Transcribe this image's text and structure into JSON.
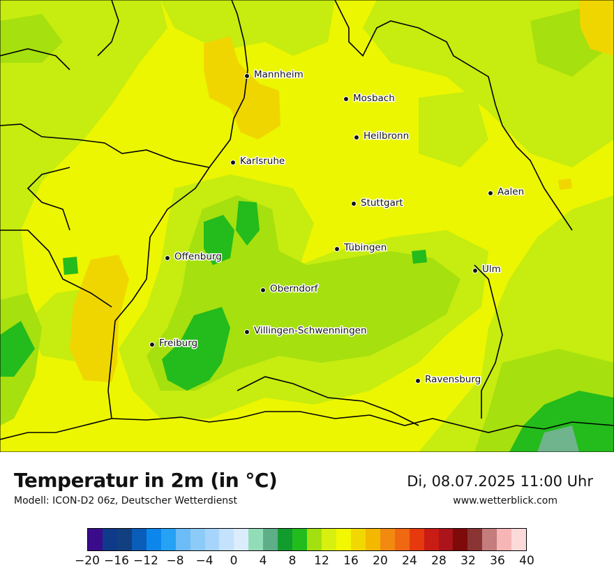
{
  "header": {
    "title": "Temperatur in 2m (in °C)",
    "subtitle": "Modell: ICON-D2 06z, Deutscher Wetterdienst",
    "datetime": "Di, 08.07.2025 11:00 Uhr",
    "website": "www.wetterblick.com"
  },
  "cities": [
    "Mannheim",
    "Mosbach",
    "Heilbronn",
    "Karlsruhe",
    "Aalen",
    "Stuttgart",
    "Tübingen",
    "Offenburg",
    "Ulm",
    "Oberndorf",
    "Villingen-Schwenningen",
    "Freiburg",
    "Ravensburg"
  ],
  "legend": {
    "ticks": [
      "−20",
      "−16",
      "−12",
      "−8",
      "−4",
      "0",
      "4",
      "8",
      "12",
      "16",
      "20",
      "24",
      "28",
      "32",
      "36",
      "40"
    ],
    "colors": [
      "#3a0c8c",
      "#0f3a8a",
      "#123f80",
      "#0a5db8",
      "#0d86ec",
      "#26a2f5",
      "#6cbcf7",
      "#8ccaf8",
      "#a6d4fa",
      "#c4e2fb",
      "#dbecfc",
      "#92dcb8",
      "#5fae8a",
      "#139c2e",
      "#22bd1c",
      "#a3e00f",
      "#d8f010",
      "#f3f802",
      "#f0d800",
      "#f4b800",
      "#f28a10",
      "#f06812",
      "#e63a0e",
      "#c81c14",
      "#aa141a",
      "#7e0a0a",
      "#8a3434",
      "#c47c7c",
      "#f6b6b6",
      "#fcdada"
    ]
  }
}
